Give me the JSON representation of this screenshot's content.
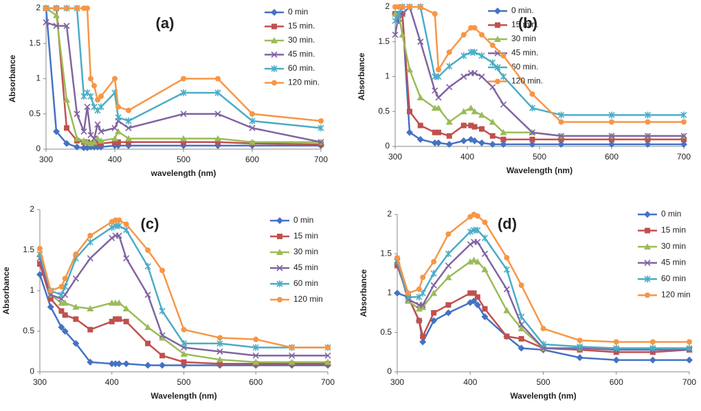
{
  "chart_data": [
    {
      "type": "line",
      "title": "(a)",
      "x_label": "wavelength (nm)",
      "y_label": "Absorbance",
      "x": [
        300,
        315,
        330,
        345,
        355,
        360,
        365,
        370,
        375,
        380,
        400,
        405,
        420,
        500,
        550,
        600,
        700
      ],
      "xlim": [
        300,
        700
      ],
      "ylim": [
        0,
        2
      ],
      "xticks": [
        300,
        400,
        500,
        600,
        700
      ],
      "yticks": [
        0,
        0.5,
        1,
        1.5,
        2
      ],
      "series": [
        {
          "name": "0 min",
          "color": "#4472c4",
          "marker": "diamond",
          "values": [
            2,
            0.25,
            0.08,
            0.03,
            0.02,
            0.02,
            0.03,
            0.03,
            0.03,
            0.03,
            0.05,
            0.05,
            0.05,
            0.05,
            0.05,
            0.05,
            0.05
          ]
        },
        {
          "name": "15 min.",
          "color": "#c0504d",
          "marker": "square",
          "values": [
            2,
            2,
            0.3,
            0.12,
            0.1,
            0.1,
            0.08,
            0.08,
            0.08,
            0.08,
            0.1,
            0.1,
            0.1,
            0.1,
            0.1,
            0.08,
            0.07
          ]
        },
        {
          "name": "30 min.",
          "color": "#9bbb59",
          "marker": "triangle",
          "values": [
            2,
            1.9,
            0.7,
            0.15,
            0.12,
            0.1,
            0.08,
            0.1,
            0.15,
            0.12,
            0.15,
            0.25,
            0.15,
            0.15,
            0.15,
            0.1,
            0.1
          ]
        },
        {
          "name": "45 min.",
          "color": "#8064a2",
          "marker": "x",
          "values": [
            1.8,
            1.75,
            1.75,
            0.5,
            0.25,
            0.6,
            0.2,
            0.15,
            0.35,
            0.25,
            0.3,
            0.4,
            0.3,
            0.5,
            0.5,
            0.3,
            0.1
          ]
        },
        {
          "name": "60 min.",
          "color": "#4bacc6",
          "marker": "star",
          "values": [
            2,
            2,
            2,
            2,
            0.75,
            0.8,
            0.75,
            0.6,
            0.55,
            0.6,
            0.8,
            0.45,
            0.4,
            0.8,
            0.8,
            0.4,
            0.3
          ]
        },
        {
          "name": "120 min.",
          "color": "#f79646",
          "marker": "circle",
          "values": [
            2,
            2,
            2,
            2,
            2,
            2,
            1,
            0.9,
            0.7,
            0.75,
            1,
            0.6,
            0.55,
            1,
            1,
            0.5,
            0.4
          ]
        }
      ]
    },
    {
      "type": "line",
      "title": "(b)",
      "x_label": "Wavelength  (nm)",
      "y_label": "Absorbance",
      "x": [
        300,
        305,
        310,
        320,
        335,
        355,
        360,
        375,
        395,
        405,
        410,
        420,
        435,
        450,
        490,
        530,
        600,
        650,
        700
      ],
      "xlim": [
        300,
        700
      ],
      "ylim": [
        0,
        2
      ],
      "xticks": [
        300,
        400,
        500,
        600,
        700
      ],
      "yticks": [
        0,
        0.5,
        1,
        1.5,
        2
      ],
      "series": [
        {
          "name": "0 min.",
          "color": "#4472c4",
          "marker": "diamond",
          "values": [
            1.9,
            1.8,
            1.9,
            0.2,
            0.1,
            0.05,
            0.05,
            0.03,
            0.08,
            0.1,
            0.08,
            0.05,
            0.03,
            0.03,
            0.03,
            0.03,
            0.03,
            0.03,
            0.03
          ]
        },
        {
          "name": "15 min.",
          "color": "#c0504d",
          "marker": "square",
          "values": [
            1.9,
            1.9,
            1.9,
            0.5,
            0.3,
            0.2,
            0.2,
            0.15,
            0.3,
            0.3,
            0.28,
            0.25,
            0.15,
            0.1,
            0.1,
            0.1,
            0.1,
            0.1,
            0.1
          ]
        },
        {
          "name": "30 min",
          "color": "#9bbb59",
          "marker": "triangle",
          "values": [
            1.9,
            1.9,
            1.6,
            1.1,
            0.7,
            0.55,
            0.55,
            0.35,
            0.5,
            0.55,
            0.5,
            0.45,
            0.35,
            0.2,
            0.2,
            0.15,
            0.15,
            0.15,
            0.15
          ]
        },
        {
          "name": "45 min.",
          "color": "#8064a2",
          "marker": "x",
          "values": [
            1.6,
            1.9,
            1.9,
            2,
            1.5,
            0.8,
            0.7,
            0.85,
            1,
            1.05,
            1.05,
            1,
            0.85,
            0.6,
            0.2,
            0.15,
            0.15,
            0.15,
            0.15
          ]
        },
        {
          "name": "60 min.",
          "color": "#4bacc6",
          "marker": "star",
          "values": [
            1.8,
            1.9,
            2,
            2,
            2,
            1,
            1,
            1.15,
            1.3,
            1.35,
            1.35,
            1.3,
            1.2,
            1,
            0.55,
            0.45,
            0.45,
            0.45,
            0.45
          ]
        },
        {
          "name": "120 min.",
          "color": "#f79646",
          "marker": "circle",
          "values": [
            2,
            2,
            2,
            2,
            2,
            1.9,
            1.1,
            1.35,
            1.6,
            1.7,
            1.7,
            1.6,
            1.45,
            1.3,
            0.75,
            0.35,
            0.35,
            0.35,
            0.35
          ]
        }
      ]
    },
    {
      "type": "line",
      "title": "(c)",
      "x_label": "Wavelength (nm)",
      "y_label": "Absorbance",
      "x": [
        300,
        315,
        330,
        335,
        350,
        370,
        400,
        405,
        410,
        420,
        450,
        470,
        500,
        550,
        600,
        650,
        700
      ],
      "xlim": [
        300,
        700
      ],
      "ylim": [
        0,
        2
      ],
      "xticks": [
        300,
        400,
        500,
        600,
        700
      ],
      "yticks": [
        0,
        0.5,
        1,
        1.5,
        2
      ],
      "series": [
        {
          "name": "0 min",
          "color": "#4472c4",
          "marker": "diamond",
          "values": [
            1.2,
            0.8,
            0.55,
            0.5,
            0.35,
            0.12,
            0.1,
            0.1,
            0.1,
            0.1,
            0.08,
            0.08,
            0.08,
            0.08,
            0.08,
            0.08,
            0.08
          ]
        },
        {
          "name": "15 min",
          "color": "#c0504d",
          "marker": "square",
          "values": [
            1.33,
            0.9,
            0.75,
            0.7,
            0.65,
            0.52,
            0.62,
            0.65,
            0.65,
            0.62,
            0.35,
            0.2,
            0.12,
            0.1,
            0.1,
            0.1,
            0.1
          ]
        },
        {
          "name": "30 min",
          "color": "#9bbb59",
          "marker": "triangle",
          "values": [
            1.45,
            0.95,
            0.85,
            0.85,
            0.8,
            0.78,
            0.85,
            0.85,
            0.85,
            0.78,
            0.55,
            0.42,
            0.22,
            0.15,
            0.12,
            0.12,
            0.12
          ]
        },
        {
          "name": "45 min",
          "color": "#8064a2",
          "marker": "x",
          "values": [
            1.4,
            0.95,
            0.9,
            0.95,
            1.15,
            1.4,
            1.65,
            1.68,
            1.68,
            1.4,
            0.95,
            0.45,
            0.3,
            0.25,
            0.2,
            0.2,
            0.2
          ]
        },
        {
          "name": "60 min",
          "color": "#4bacc6",
          "marker": "star",
          "values": [
            1.45,
            1,
            0.95,
            1.05,
            1.4,
            1.6,
            1.78,
            1.8,
            1.8,
            1.75,
            1.3,
            0.75,
            0.35,
            0.35,
            0.3,
            0.3,
            0.3
          ]
        },
        {
          "name": "120 min",
          "color": "#f79646",
          "marker": "circle",
          "values": [
            1.52,
            1,
            1.05,
            1.15,
            1.45,
            1.68,
            1.85,
            1.87,
            1.87,
            1.82,
            1.5,
            1.25,
            0.52,
            0.42,
            0.4,
            0.3,
            0.3
          ]
        }
      ]
    },
    {
      "type": "line",
      "title": "(d)",
      "x_label": "Wavelength (nm)",
      "y_label": "Absorbance",
      "x": [
        300,
        315,
        330,
        335,
        350,
        370,
        400,
        405,
        410,
        420,
        450,
        470,
        500,
        550,
        600,
        650,
        700
      ],
      "xlim": [
        300,
        700
      ],
      "ylim": [
        0,
        2
      ],
      "xticks": [
        300,
        400,
        500,
        600,
        700
      ],
      "yticks": [
        0,
        0.5,
        1,
        1.5,
        2
      ],
      "series": [
        {
          "name": "0 min",
          "color": "#4472c4",
          "marker": "diamond",
          "values": [
            1,
            0.95,
            0.65,
            0.38,
            0.65,
            0.75,
            0.88,
            0.9,
            0.85,
            0.7,
            0.45,
            0.3,
            0.28,
            0.18,
            0.15,
            0.15,
            0.15
          ]
        },
        {
          "name": "15 min",
          "color": "#c0504d",
          "marker": "square",
          "values": [
            1.35,
            0.95,
            0.65,
            0.45,
            0.75,
            0.85,
            1,
            1,
            0.95,
            0.8,
            0.45,
            0.42,
            0.3,
            0.28,
            0.25,
            0.25,
            0.28
          ]
        },
        {
          "name": "30 min",
          "color": "#9bbb59",
          "marker": "triangle",
          "values": [
            1.4,
            0.9,
            0.8,
            0.82,
            1,
            1.2,
            1.4,
            1.42,
            1.4,
            1.3,
            0.78,
            0.55,
            0.3,
            0.3,
            0.3,
            0.3,
            0.3
          ]
        },
        {
          "name": "45 min",
          "color": "#8064a2",
          "marker": "x",
          "values": [
            1.4,
            0.92,
            0.85,
            0.85,
            1.1,
            1.35,
            1.62,
            1.65,
            1.65,
            1.5,
            1.05,
            0.6,
            0.3,
            0.3,
            0.28,
            0.28,
            0.28
          ]
        },
        {
          "name": "60 min",
          "color": "#4bacc6",
          "marker": "star",
          "values": [
            1.42,
            0.95,
            0.95,
            1,
            1.25,
            1.5,
            1.78,
            1.8,
            1.8,
            1.7,
            1.3,
            0.7,
            0.35,
            0.32,
            0.3,
            0.3,
            0.3
          ]
        },
        {
          "name": "120 min",
          "color": "#f79646",
          "marker": "circle",
          "values": [
            1.45,
            1,
            1.05,
            1.2,
            1.4,
            1.75,
            1.97,
            2,
            1.98,
            1.9,
            1.45,
            1.1,
            0.55,
            0.4,
            0.38,
            0.38,
            0.38
          ]
        }
      ]
    }
  ]
}
